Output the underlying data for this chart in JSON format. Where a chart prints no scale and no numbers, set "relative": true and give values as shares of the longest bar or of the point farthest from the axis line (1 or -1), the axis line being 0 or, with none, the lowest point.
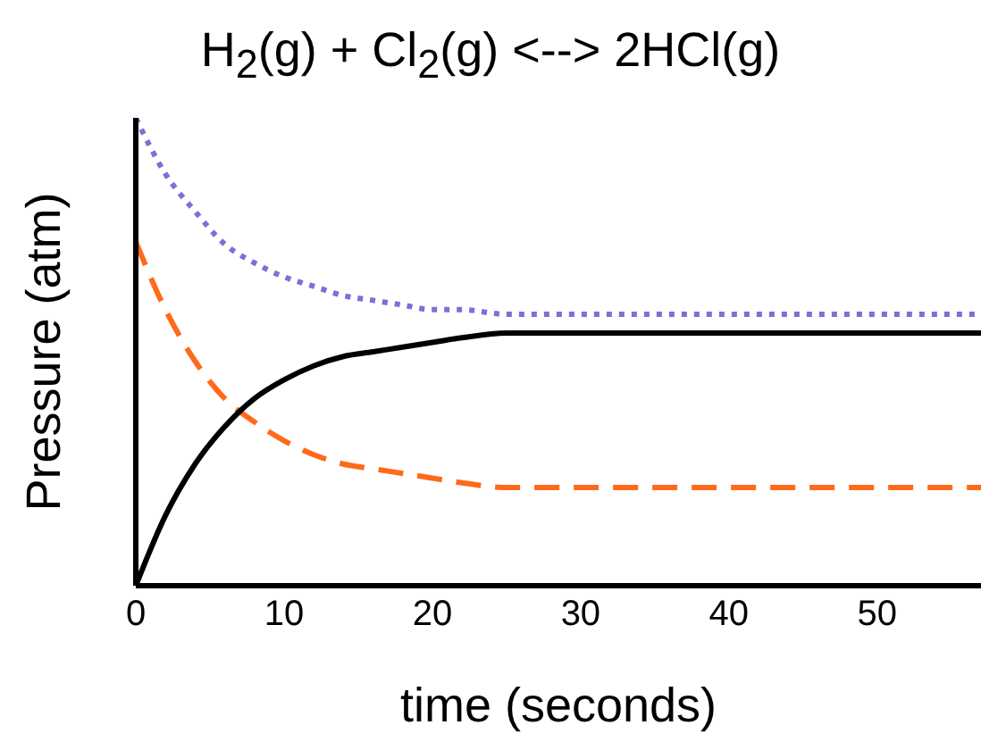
{
  "chart_data": {
    "type": "line",
    "title": "H$_{2}$(g) + Cl$_{2}$(g) <--> 2HCl(g)",
    "xlabel": "time (seconds)",
    "ylabel": "Pressure (atm)",
    "relative": true,
    "tick_labels": "x",
    "xlim": [
      0,
      57
    ],
    "xticks": [
      0,
      10,
      20,
      30,
      40,
      50
    ],
    "grid": false,
    "legend": false,
    "marker": "none",
    "x": [
      0,
      2,
      4,
      6,
      8,
      10,
      12,
      14,
      16,
      18,
      20,
      22,
      25,
      30,
      40,
      50,
      57
    ],
    "series": [
      {
        "color": "#7b70d6",
        "line_style": "dotted",
        "values": [
          1.0,
          0.88,
          0.8,
          0.73,
          0.69,
          0.66,
          0.64,
          0.62,
          0.61,
          0.6,
          0.59,
          0.59,
          0.58,
          0.58,
          0.58,
          0.58,
          0.58
        ]
      },
      {
        "color": "#ff6a1a",
        "line_style": "dashed",
        "values": [
          0.735,
          0.59,
          0.48,
          0.4,
          0.35,
          0.31,
          0.28,
          0.26,
          0.25,
          0.24,
          0.23,
          0.22,
          0.21,
          0.21,
          0.21,
          0.21,
          0.21
        ]
      },
      {
        "color": "#000000",
        "line_style": "solid",
        "values": [
          0,
          0.15,
          0.26,
          0.34,
          0.4,
          0.44,
          0.47,
          0.49,
          0.5,
          0.51,
          0.52,
          0.53,
          0.54,
          0.54,
          0.54,
          0.54,
          0.54
        ]
      }
    ]
  }
}
